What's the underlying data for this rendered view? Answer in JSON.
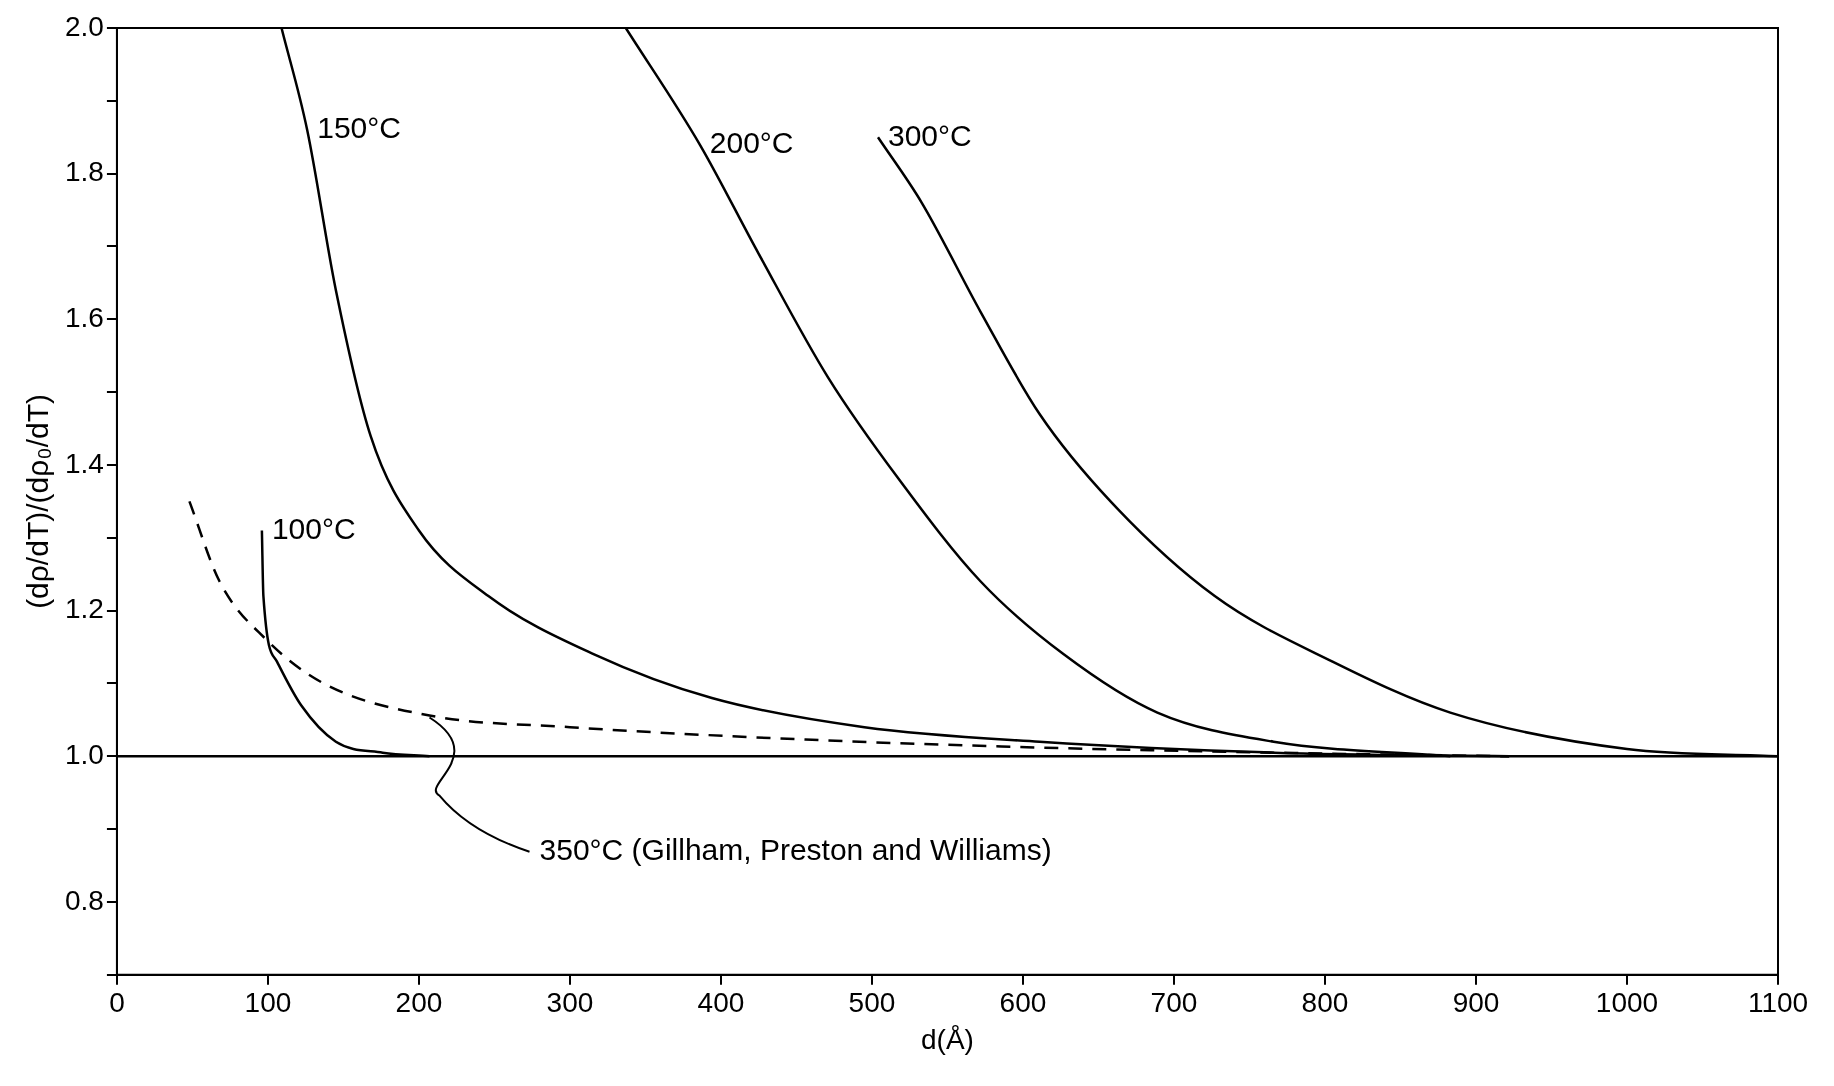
{
  "chart_data": {
    "type": "line",
    "xlabel": "d(Å)",
    "ylabel": "(dρ/dT)/(dρ₀/dT)",
    "xlim": [
      0,
      1100
    ],
    "xticks": [
      0,
      100,
      200,
      300,
      400,
      500,
      600,
      700,
      800,
      900,
      1000,
      1100
    ],
    "ylim": [
      0.7,
      2.0
    ],
    "yticks": [
      {
        "value": 0.7,
        "label": null
      },
      {
        "value": 0.8,
        "label": "0.8"
      },
      {
        "value": 0.9,
        "label": null
      },
      {
        "value": 1.0,
        "label": "1.0"
      },
      {
        "value": 1.1,
        "label": null
      },
      {
        "value": 1.2,
        "label": "1.2"
      },
      {
        "value": 1.3,
        "label": null
      },
      {
        "value": 1.4,
        "label": "1.4"
      },
      {
        "value": 1.5,
        "label": null
      },
      {
        "value": 1.6,
        "label": "1.6"
      },
      {
        "value": 1.7,
        "label": null
      },
      {
        "value": 1.8,
        "label": "1.8"
      },
      {
        "value": 1.9,
        "label": null
      },
      {
        "value": 2.0,
        "label": "2.0"
      }
    ],
    "marker": "none",
    "legend": false,
    "ref_lines": [
      {
        "axis": "y",
        "value": 1.0,
        "color": "#000000",
        "line_style": "solid"
      }
    ],
    "series": [
      {
        "name": "100°C",
        "color": "#000000",
        "line_style": "solid",
        "x": [
          96,
          97,
          106,
          122,
          145,
          176,
          207
        ],
        "values": [
          1.31,
          1.22,
          1.13,
          1.07,
          1.02,
          1.005,
          1.0
        ]
      },
      {
        "name": "150°C",
        "color": "#000000",
        "line_style": "solid",
        "x": [
          109,
          126,
          145,
          168,
          200,
          246,
          316,
          394,
          495,
          611,
          766,
          922
        ],
        "values": [
          2.0,
          1.86,
          1.64,
          1.44,
          1.31,
          1.22,
          1.14,
          1.08,
          1.04,
          1.02,
          1.005,
          1.0
        ]
      },
      {
        "name": "200°C",
        "color": "#000000",
        "line_style": "solid",
        "x": [
          337,
          386,
          425,
          471,
          518,
          572,
          627,
          689,
          766,
          883
        ],
        "values": [
          2.0,
          1.84,
          1.69,
          1.52,
          1.38,
          1.24,
          1.14,
          1.06,
          1.02,
          1.0
        ]
      },
      {
        "name": "300°C",
        "color": "#000000",
        "line_style": "solid",
        "x": [
          504,
          533,
          572,
          611,
          658,
          727,
          805,
          883,
          1000,
          1100
        ],
        "values": [
          1.85,
          1.76,
          1.61,
          1.47,
          1.35,
          1.22,
          1.13,
          1.06,
          1.01,
          1.0
        ]
      },
      {
        "name": "350°C (Gillham, Preston and Williams)",
        "color": "#000000",
        "line_style": "dashed",
        "x": [
          48,
          68,
          99,
          137,
          207,
          300,
          456,
          611,
          766,
          922
        ],
        "values": [
          1.35,
          1.24,
          1.16,
          1.1,
          1.056,
          1.04,
          1.023,
          1.012,
          1.005,
          1.0
        ]
      }
    ]
  }
}
